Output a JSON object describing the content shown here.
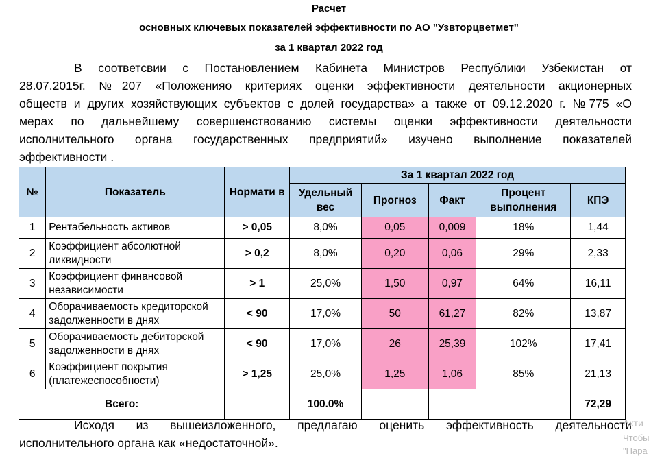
{
  "header": {
    "title_line1": "Расчет",
    "title_line2": "основных ключевых показателей эффективности по АО \"Узвторцветмет\"",
    "title_line3": "за 1 квартал 2022 год"
  },
  "intro_lines": [
    "В соответсвии с Постановлением Кабинета Министров Республики Узбекистан от",
    "28.07.2015г. №207 «Положенияо критериях оценки эффективности деятельности акционерных",
    "обществ и других хозяйствующих субъектов с долей государства» а также от 09.12.2020 г. №775 «О",
    "мерах по дальнейшему совершенствованию системы оценки эффективности деятельности",
    "исполнительного органа государственных предприятий» изучено выполнение показателей",
    "эффективности ."
  ],
  "table": {
    "headers": {
      "num": "№",
      "indicator": "Показатель",
      "norm": "Нормати в",
      "period": "За 1 квартал 2022 год",
      "weight": "Удельный вес",
      "plan": "Прогноз",
      "fact": "Факт",
      "percent": "Процент выполнения",
      "kpe": "КПЭ"
    },
    "rows": [
      {
        "num": "1",
        "name": "Рентабельность активов",
        "norm": "> 0,05",
        "weight": "8,0%",
        "plan": "0,05",
        "fact": "0,009",
        "percent": "18%",
        "kpe": "1,44"
      },
      {
        "num": "2",
        "name": "Коэффициент абсолютной ликвидности",
        "norm": "> 0,2",
        "weight": "8,0%",
        "plan": "0,20",
        "fact": "0,06",
        "percent": "29%",
        "kpe": "2,33"
      },
      {
        "num": "3",
        "name": "Коэффициент финансовой независимости",
        "norm": "> 1",
        "weight": "25,0%",
        "plan": "1,50",
        "fact": "0,97",
        "percent": "64%",
        "kpe": "16,11"
      },
      {
        "num": "4",
        "name": "Оборачиваемость кредиторской задолженности в днях",
        "norm": "< 90",
        "weight": "17,0%",
        "plan": "50",
        "fact": "61,27",
        "percent": "82%",
        "kpe": "13,87"
      },
      {
        "num": "5",
        "name": "Оборачиваемость дебиторской задолженности в днях",
        "norm": "< 90",
        "weight": "17,0%",
        "plan": "26",
        "fact": "25,39",
        "percent": "102%",
        "kpe": "17,41"
      },
      {
        "num": "6",
        "name": "Коэффициент покрытия (платежеспособности)",
        "norm": "> 1,25",
        "weight": "25,0%",
        "plan": "1,25",
        "fact": "1,06",
        "percent": "85%",
        "kpe": "21,13"
      }
    ],
    "total": {
      "label": "Всего:",
      "weight": "100.0%",
      "kpe": "72,29"
    }
  },
  "conclusion_lines": [
    "Исходя из вышеизложенного, предлагаю оценить эффективность деятельности",
    "исполнительного органа как «недостаточной»."
  ],
  "watermark": {
    "line1": "Акти",
    "line2": "Чтобы",
    "line3": "\"Пара"
  },
  "colors": {
    "header_fill": "#bdd7ee",
    "plan_fact_fill": "#f9a0c6"
  }
}
